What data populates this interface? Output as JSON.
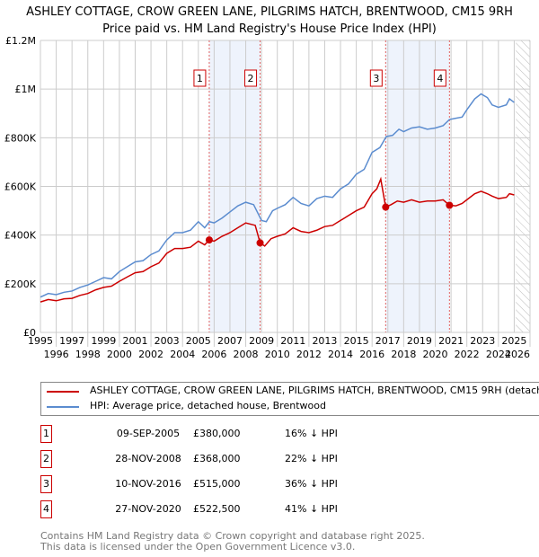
{
  "title": "ASHLEY COTTAGE, CROW GREEN LANE, PILGRIMS HATCH, BRENTWOOD, CM15 9RH",
  "subtitle": "Price paid vs. HM Land Registry's House Price Index (HPI)",
  "chart_data": {
    "type": "line",
    "xlim": [
      1995,
      2026
    ],
    "ylim": [
      0,
      1200000
    ],
    "yticks": [
      {
        "v": 0,
        "label": "£0"
      },
      {
        "v": 200000,
        "label": "£200K"
      },
      {
        "v": 400000,
        "label": "£400K"
      },
      {
        "v": 600000,
        "label": "£600K"
      },
      {
        "v": 800000,
        "label": "£800K"
      },
      {
        "v": 1000000,
        "label": "£1M"
      },
      {
        "v": 1200000,
        "label": "£1.2M"
      }
    ],
    "xticks": [
      "1995",
      "1996",
      "1997",
      "1998",
      "1999",
      "2000",
      "2001",
      "2002",
      "2003",
      "2004",
      "2005",
      "2006",
      "2007",
      "2008",
      "2009",
      "2010",
      "2011",
      "2012",
      "2013",
      "2014",
      "2015",
      "2016",
      "2017",
      "2018",
      "2019",
      "2020",
      "2021",
      "2022",
      "2023",
      "2024",
      "2025",
      "2026"
    ],
    "forecast_start": 2025.1,
    "series": [
      {
        "name": "ASHLEY COTTAGE, CROW GREEN LANE, PILGRIMS HATCH, BRENTWOOD, CM15 9RH (detached house)",
        "color": "#cc0000",
        "x": [
          1995,
          1995.5,
          1996,
          1996.5,
          1997,
          1997.5,
          1998,
          1998.5,
          1999,
          1999.5,
          2000,
          2000.5,
          2001,
          2001.5,
          2002,
          2002.5,
          2003,
          2003.5,
          2004,
          2004.5,
          2005,
          2005.4,
          2005.69,
          2006,
          2006.5,
          2007,
          2007.5,
          2008,
          2008.6,
          2008.91,
          2009.2,
          2009.6,
          2010,
          2010.5,
          2011,
          2011.5,
          2012,
          2012.5,
          2013,
          2013.5,
          2014,
          2014.5,
          2015,
          2015.5,
          2016,
          2016.3,
          2016.55,
          2016.86,
          2017.2,
          2017.6,
          2018,
          2018.5,
          2019,
          2019.5,
          2020,
          2020.5,
          2020.9,
          2021.3,
          2021.7,
          2022,
          2022.5,
          2022.9,
          2023.3,
          2023.6,
          2024,
          2024.5,
          2024.7,
          2025
        ],
        "y": [
          125000,
          135000,
          130000,
          138000,
          140000,
          152000,
          160000,
          175000,
          185000,
          190000,
          210000,
          228000,
          245000,
          250000,
          270000,
          285000,
          325000,
          345000,
          345000,
          350000,
          375000,
          360000,
          380000,
          375000,
          395000,
          410000,
          430000,
          450000,
          440000,
          368000,
          355000,
          385000,
          395000,
          405000,
          430000,
          415000,
          410000,
          420000,
          435000,
          440000,
          460000,
          480000,
          500000,
          515000,
          570000,
          590000,
          630000,
          515000,
          525000,
          540000,
          535000,
          545000,
          535000,
          540000,
          540000,
          545000,
          522500,
          520000,
          530000,
          545000,
          570000,
          580000,
          570000,
          560000,
          550000,
          555000,
          570000,
          565000
        ]
      },
      {
        "name": "HPI: Average price, detached house, Brentwood",
        "color": "#5b8ccf",
        "x": [
          1995,
          1995.5,
          1996,
          1996.5,
          1997,
          1997.5,
          1998,
          1998.5,
          1999,
          1999.5,
          2000,
          2000.5,
          2001,
          2001.5,
          2002,
          2002.5,
          2003,
          2003.5,
          2004,
          2004.5,
          2005,
          2005.4,
          2005.7,
          2006,
          2006.5,
          2007,
          2007.5,
          2008,
          2008.5,
          2009,
          2009.3,
          2009.7,
          2010,
          2010.5,
          2011,
          2011.5,
          2012,
          2012.5,
          2013,
          2013.5,
          2014,
          2014.5,
          2015,
          2015.5,
          2016,
          2016.5,
          2016.9,
          2017.3,
          2017.7,
          2018,
          2018.5,
          2019,
          2019.5,
          2020,
          2020.5,
          2020.9,
          2021.3,
          2021.7,
          2022,
          2022.5,
          2022.9,
          2023.3,
          2023.6,
          2024,
          2024.5,
          2024.7,
          2025
        ],
        "y": [
          145000,
          160000,
          155000,
          165000,
          170000,
          185000,
          195000,
          210000,
          225000,
          220000,
          250000,
          270000,
          290000,
          295000,
          320000,
          335000,
          380000,
          410000,
          410000,
          420000,
          455000,
          430000,
          455000,
          450000,
          470000,
          495000,
          520000,
          535000,
          525000,
          460000,
          455000,
          500000,
          510000,
          525000,
          555000,
          530000,
          520000,
          550000,
          560000,
          555000,
          590000,
          610000,
          650000,
          670000,
          740000,
          760000,
          805000,
          810000,
          835000,
          825000,
          840000,
          845000,
          835000,
          840000,
          850000,
          875000,
          880000,
          885000,
          915000,
          960000,
          980000,
          965000,
          935000,
          925000,
          935000,
          960000,
          945000
        ]
      }
    ],
    "sales": [
      {
        "n": "1",
        "x": 2005.69,
        "y": 380000,
        "date": "09-SEP-2005",
        "price": "£380,000",
        "hpi": "16% ↓ HPI"
      },
      {
        "n": "2",
        "x": 2008.91,
        "y": 368000,
        "date": "28-NOV-2008",
        "price": "£368,000",
        "hpi": "22% ↓ HPI"
      },
      {
        "n": "3",
        "x": 2016.86,
        "y": 515000,
        "date": "10-NOV-2016",
        "price": "£515,000",
        "hpi": "36% ↓ HPI"
      },
      {
        "n": "4",
        "x": 2020.9,
        "y": 522500,
        "date": "27-NOV-2020",
        "price": "£522,500",
        "hpi": "41% ↓ HPI"
      }
    ]
  },
  "footer": [
    "Contains HM Land Registry data © Crown copyright and database right 2025.",
    "This data is licensed under the Open Government Licence v3.0."
  ]
}
